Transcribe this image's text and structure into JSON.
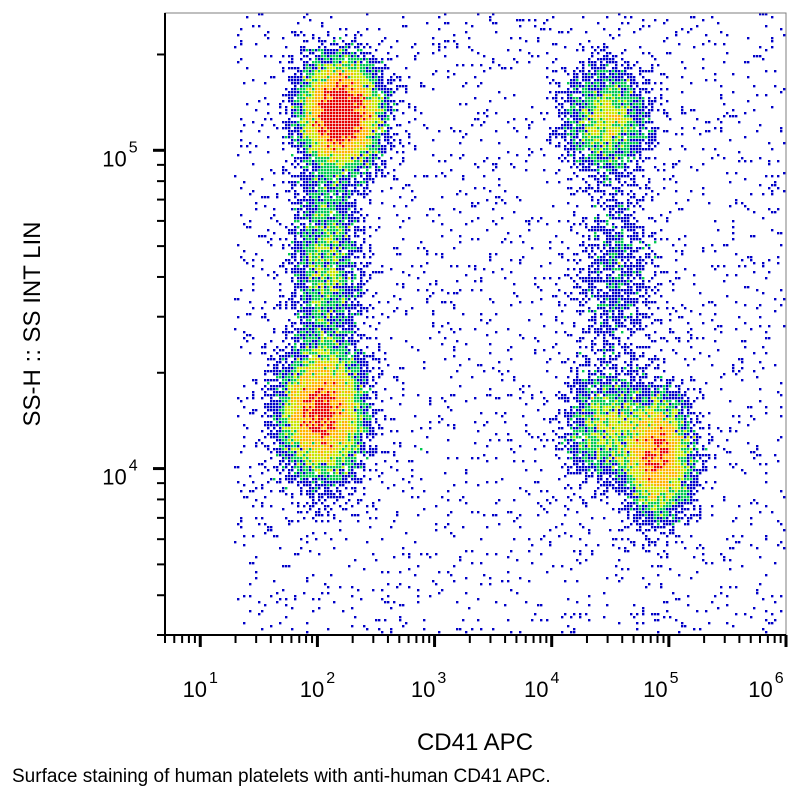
{
  "chart_data": {
    "type": "scatter",
    "style": "density-dot-plot",
    "xlabel": "CD41 APC",
    "ylabel": "SS-H :: SS INT LIN",
    "x_scale": "log",
    "y_scale": "log",
    "xlim": [
      5,
      1000000
    ],
    "ylim": [
      3000,
      270000
    ],
    "x_ticks": [
      {
        "base": "10",
        "exp": "1",
        "value": 10
      },
      {
        "base": "10",
        "exp": "2",
        "value": 100
      },
      {
        "base": "10",
        "exp": "3",
        "value": 1000
      },
      {
        "base": "10",
        "exp": "4",
        "value": 10000
      },
      {
        "base": "10",
        "exp": "5",
        "value": 100000
      },
      {
        "base": "10",
        "exp": "6",
        "value": 1000000
      }
    ],
    "y_ticks": [
      {
        "base": "10",
        "exp": "4",
        "value": 10000
      },
      {
        "base": "10",
        "exp": "5",
        "value": 100000
      }
    ],
    "density_colors": [
      "#0000c8",
      "#00b4dc",
      "#00c850",
      "#c8e600",
      "#ffb400",
      "#e60000"
    ],
    "populations": [
      {
        "x_center": 160,
        "y_center": 130000,
        "x_sd_decades": 0.16,
        "y_sd_decades": 0.08,
        "weight": 0.3
      },
      {
        "x_center": 110,
        "y_center": 15000,
        "x_sd_decades": 0.17,
        "y_sd_decades": 0.1,
        "weight": 0.26
      },
      {
        "x_center": 120,
        "y_center": 45000,
        "x_sd_decades": 0.14,
        "y_sd_decades": 0.17,
        "weight": 0.08
      },
      {
        "x_center": 80000,
        "y_center": 11000,
        "x_sd_decades": 0.14,
        "y_sd_decades": 0.09,
        "weight": 0.17
      },
      {
        "x_center": 30000,
        "y_center": 13500,
        "x_sd_decades": 0.17,
        "y_sd_decades": 0.08,
        "weight": 0.06
      },
      {
        "x_center": 30000,
        "y_center": 125000,
        "x_sd_decades": 0.17,
        "y_sd_decades": 0.08,
        "weight": 0.07
      },
      {
        "x_center": 35000,
        "y_center": 40000,
        "x_sd_decades": 0.18,
        "y_sd_decades": 0.17,
        "weight": 0.03
      }
    ]
  },
  "caption": "Surface staining of human platelets with anti-human CD41 APC."
}
